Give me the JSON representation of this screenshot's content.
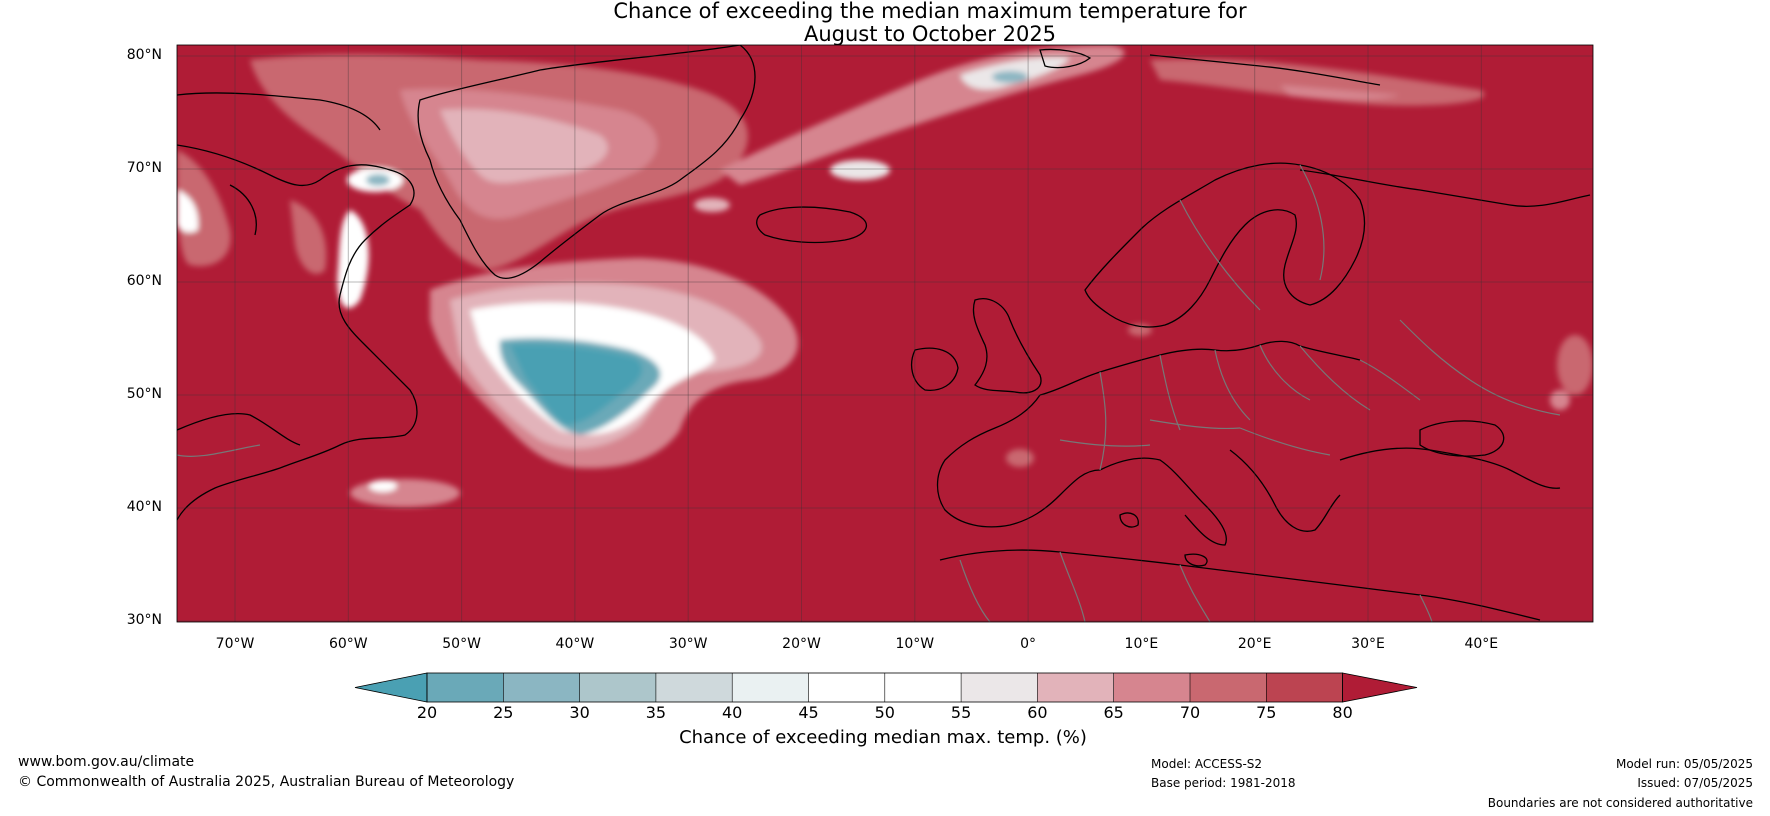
{
  "title_line1": "Chance of exceeding the median maximum temperature for",
  "title_line2": "August to October 2025",
  "lat_ticks": [
    "80°N",
    "70°N",
    "60°N",
    "50°N",
    "40°N",
    "30°N"
  ],
  "lon_ticks": [
    "70°W",
    "60°W",
    "50°W",
    "40°W",
    "30°W",
    "20°W",
    "10°W",
    "0°",
    "10°E",
    "20°E",
    "30°E",
    "40°E"
  ],
  "colorbar": {
    "ticks": [
      "20",
      "25",
      "30",
      "35",
      "40",
      "45",
      "50",
      "55",
      "60",
      "65",
      "70",
      "75",
      "80"
    ],
    "colors": [
      "#4aa0b3",
      "#6aa9b8",
      "#8bb6c2",
      "#adc6cb",
      "#cfd9dc",
      "#eaf1f2",
      "#ffffff",
      "#ffffff",
      "#ebe7e8",
      "#e2b3ba",
      "#d6858f",
      "#c96870",
      "#bc4451",
      "#b01c36"
    ],
    "label": "Chance of exceeding median max. temp. (%)"
  },
  "map_colors": {
    "background": "#b01c36",
    "coast": "#000000",
    "borders": "#777777"
  },
  "footer": {
    "website": "www.bom.gov.au/climate",
    "copyright": "© Commonwealth of Australia 2025, Australian Bureau of Meteorology",
    "model": "Model: ACCESS-S2",
    "base_period": "Base period: 1981-2018",
    "model_run": "Model run: 05/05/2025",
    "issued": "Issued: 07/05/2025",
    "disclaimer": "Boundaries are not considered authoritative"
  }
}
